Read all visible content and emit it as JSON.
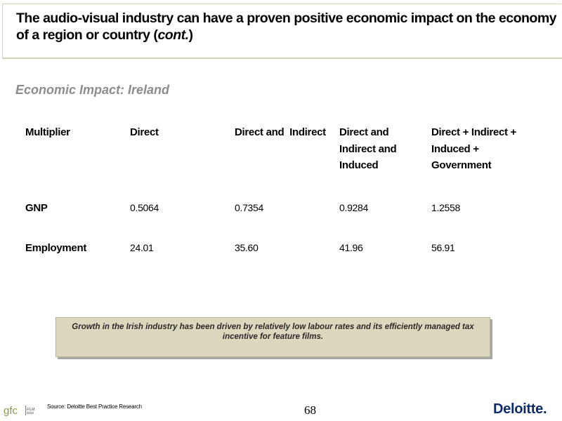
{
  "slide": {
    "title_main": "The audio-visual industry can have a proven positive economic impact on the economy of a region or country (",
    "title_cont": "cont.",
    "title_close": ")",
    "subtitle": "Economic Impact: Ireland"
  },
  "table": {
    "headers": [
      "Multiplier",
      "Direct",
      "Direct and  Indirect",
      "Direct and Indirect and Induced",
      "Direct + Indirect + Induced + Government"
    ],
    "rows": [
      {
        "label": "GNP",
        "values": [
          "0.5064",
          "0.7354",
          "0.9284",
          "1.2558"
        ]
      },
      {
        "label": "Employment",
        "values": [
          "24.01",
          "35.60",
          "41.96",
          "56.91"
        ]
      }
    ]
  },
  "note": "Growth in the Irish industry has been driven by relatively low labour rates and its efficiently managed tax incentive for feature films.",
  "footer": {
    "logo_text": "gfc",
    "logo_sub": "FILM",
    "source": "Source: Deloitte Best Practice Research",
    "page_number": "68",
    "brand": "Deloitte",
    "brand_dot": "."
  },
  "colors": {
    "title_rule": "#d8d2b4",
    "subtitle": "#8c8c8c",
    "note_bg": "#dcd7bd",
    "brand": "#0c2d6b"
  }
}
